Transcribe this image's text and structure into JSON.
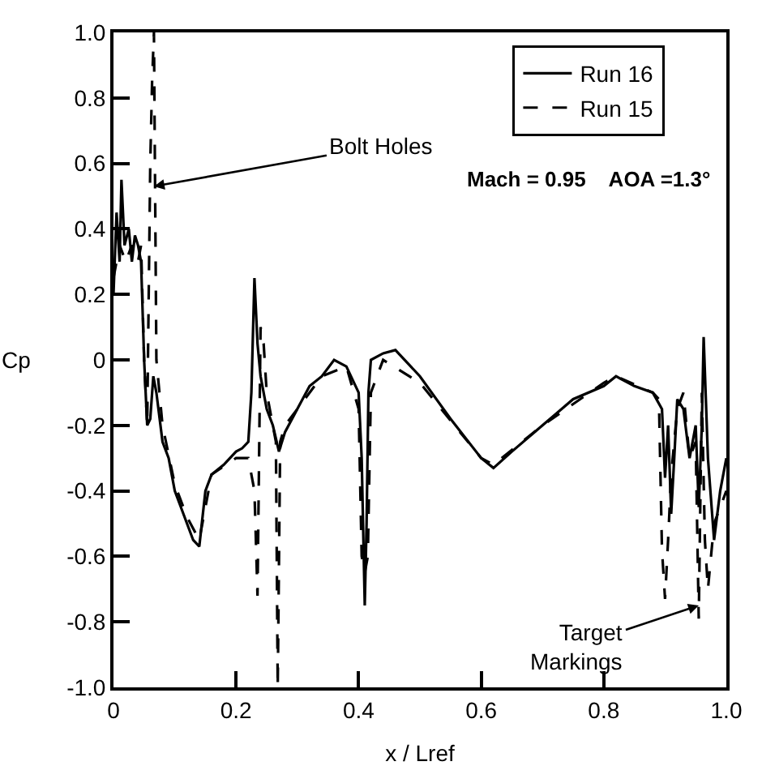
{
  "chart_data": {
    "type": "line",
    "xlabel": "x / Lref",
    "ylabel": "Cp",
    "xlim": [
      0,
      1.0
    ],
    "ylim": [
      -1.0,
      1.0
    ],
    "xticks": [
      0,
      0.2,
      0.4,
      0.6,
      0.8,
      {
        "value": 1.0,
        "label": "1.0"
      }
    ],
    "yticks": [
      {
        "value": -1.0,
        "label": "-1.0"
      },
      -0.8,
      -0.6,
      -0.4,
      -0.2,
      0,
      0.2,
      0.4,
      0.6,
      0.8,
      {
        "value": 1.0,
        "label": "1.0"
      }
    ],
    "legend": "top right",
    "marker": "none",
    "series": [
      {
        "name": "Run 16",
        "color": "#000000",
        "line_style": "solid",
        "x": [
          0,
          0.005,
          0.01,
          0.013,
          0.018,
          0.025,
          0.03,
          0.035,
          0.04,
          0.045,
          0.05,
          0.055,
          0.06,
          0.065,
          0.07,
          0.08,
          0.09,
          0.1,
          0.11,
          0.12,
          0.13,
          0.14,
          0.15,
          0.16,
          0.18,
          0.2,
          0.21,
          0.22,
          0.225,
          0.23,
          0.235,
          0.24,
          0.25,
          0.26,
          0.27,
          0.28,
          0.3,
          0.32,
          0.34,
          0.36,
          0.38,
          0.4,
          0.405,
          0.41,
          0.413,
          0.416,
          0.42,
          0.44,
          0.46,
          0.5,
          0.55,
          0.6,
          0.62,
          0.65,
          0.7,
          0.75,
          0.8,
          0.82,
          0.85,
          0.88,
          0.895,
          0.9,
          0.905,
          0.91,
          0.915,
          0.92,
          0.93,
          0.94,
          0.95,
          0.955,
          0.96,
          0.963,
          0.97,
          0.98,
          0.99,
          1.0
        ],
        "values": [
          0.2,
          0.45,
          0.3,
          0.55,
          0.35,
          0.4,
          0.3,
          0.38,
          0.35,
          0.3,
          0.0,
          -0.2,
          -0.18,
          -0.05,
          -0.1,
          -0.25,
          -0.3,
          -0.4,
          -0.45,
          -0.5,
          -0.55,
          -0.57,
          -0.4,
          -0.35,
          -0.32,
          -0.28,
          -0.27,
          -0.25,
          -0.1,
          0.25,
          0.05,
          -0.05,
          -0.15,
          -0.2,
          -0.28,
          -0.22,
          -0.15,
          -0.08,
          -0.05,
          0.0,
          -0.02,
          -0.1,
          -0.3,
          -0.75,
          -0.5,
          -0.1,
          0.0,
          0.02,
          0.03,
          -0.05,
          -0.18,
          -0.3,
          -0.33,
          -0.28,
          -0.2,
          -0.12,
          -0.08,
          -0.05,
          -0.08,
          -0.1,
          -0.15,
          -0.36,
          -0.2,
          -0.47,
          -0.3,
          -0.12,
          -0.15,
          -0.3,
          -0.2,
          -0.45,
          -0.2,
          0.07,
          -0.3,
          -0.55,
          -0.4,
          -0.3
        ]
      },
      {
        "name": "Run 15",
        "color": "#000000",
        "line_style": "dashed",
        "x": [
          0,
          0.01,
          0.02,
          0.03,
          0.04,
          0.045,
          0.05,
          0.055,
          0.06,
          0.063,
          0.066,
          0.07,
          0.075,
          0.08,
          0.1,
          0.12,
          0.14,
          0.16,
          0.2,
          0.22,
          0.23,
          0.235,
          0.24,
          0.245,
          0.25,
          0.26,
          0.265,
          0.268,
          0.272,
          0.28,
          0.3,
          0.34,
          0.38,
          0.4,
          0.405,
          0.41,
          0.415,
          0.42,
          0.44,
          0.5,
          0.6,
          0.62,
          0.7,
          0.8,
          0.82,
          0.88,
          0.89,
          0.895,
          0.9,
          0.905,
          0.91,
          0.92,
          0.93,
          0.94,
          0.95,
          0.955,
          0.96,
          0.965,
          0.97,
          0.98,
          1.0
        ],
        "values": [
          0.25,
          0.35,
          0.3,
          0.35,
          0.3,
          0.35,
          0.0,
          -0.2,
          0.6,
          0.85,
          1.0,
          0.0,
          -0.1,
          -0.2,
          -0.38,
          -0.48,
          -0.55,
          -0.35,
          -0.3,
          -0.3,
          -0.4,
          -0.72,
          0.1,
          0.05,
          -0.1,
          -0.2,
          -0.25,
          -1.0,
          -0.25,
          -0.2,
          -0.15,
          -0.05,
          -0.02,
          -0.15,
          -0.6,
          -0.65,
          -0.6,
          -0.1,
          0.0,
          -0.07,
          -0.3,
          -0.32,
          -0.2,
          -0.07,
          -0.05,
          -0.1,
          -0.12,
          -0.58,
          -0.73,
          -0.55,
          -0.35,
          -0.15,
          -0.1,
          -0.3,
          -0.25,
          -0.79,
          -0.1,
          -0.55,
          -0.7,
          -0.5,
          -0.4
        ]
      }
    ],
    "annotations": [
      "Mach = 0.95    AOA =1.3°",
      {
        "text": "Bolt Holes",
        "x": 0.066,
        "y": 0.53
      },
      {
        "text": "Target Markings",
        "x": 0.955,
        "y": -0.75
      }
    ]
  }
}
